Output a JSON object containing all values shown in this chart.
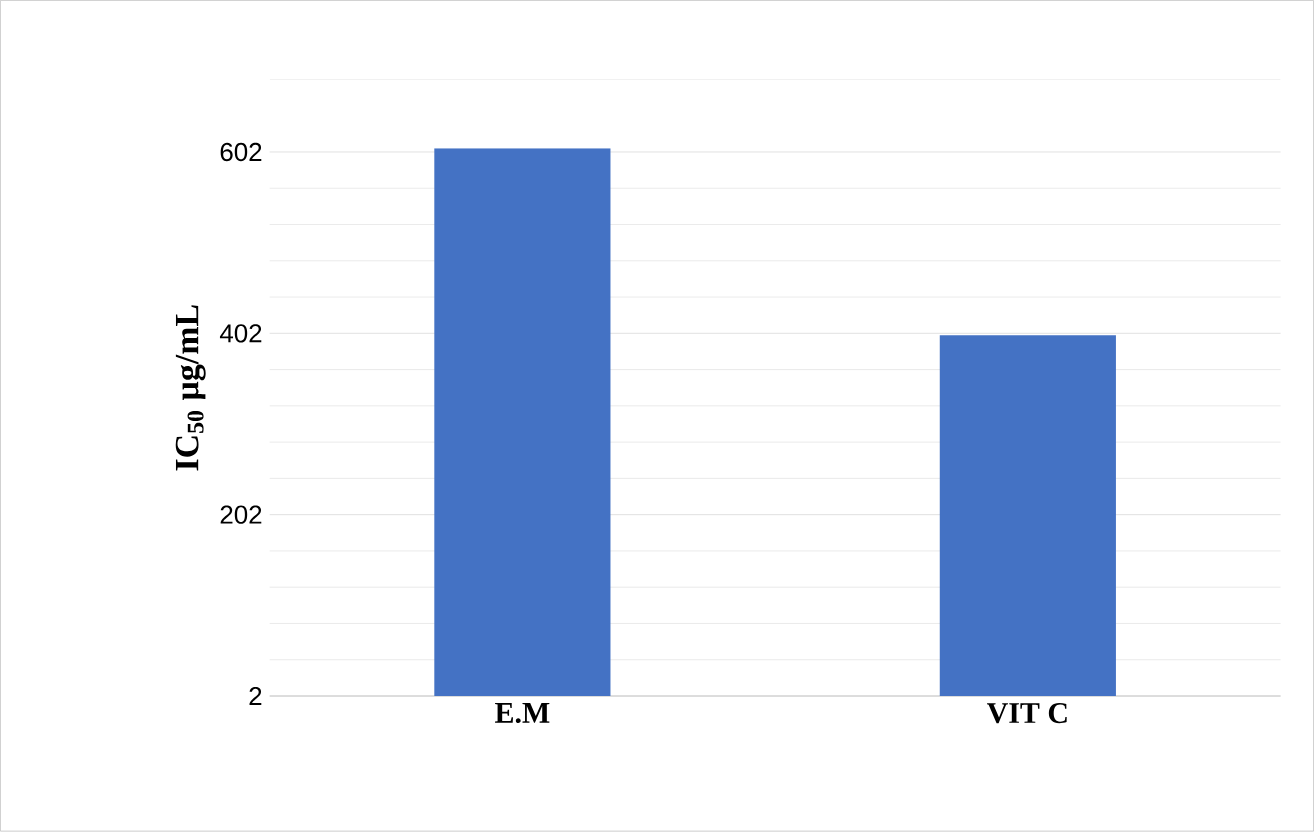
{
  "chart_data": {
    "type": "bar",
    "ylabel": "IC$_{50}$ µg/mL",
    "categories": [
      "E.M",
      "VIT C"
    ],
    "values": [
      606,
      400
    ],
    "color": "#4472c4",
    "ylim": [
      2,
      682
    ],
    "yticks": [
      2,
      202,
      402,
      602
    ],
    "grid": true
  }
}
